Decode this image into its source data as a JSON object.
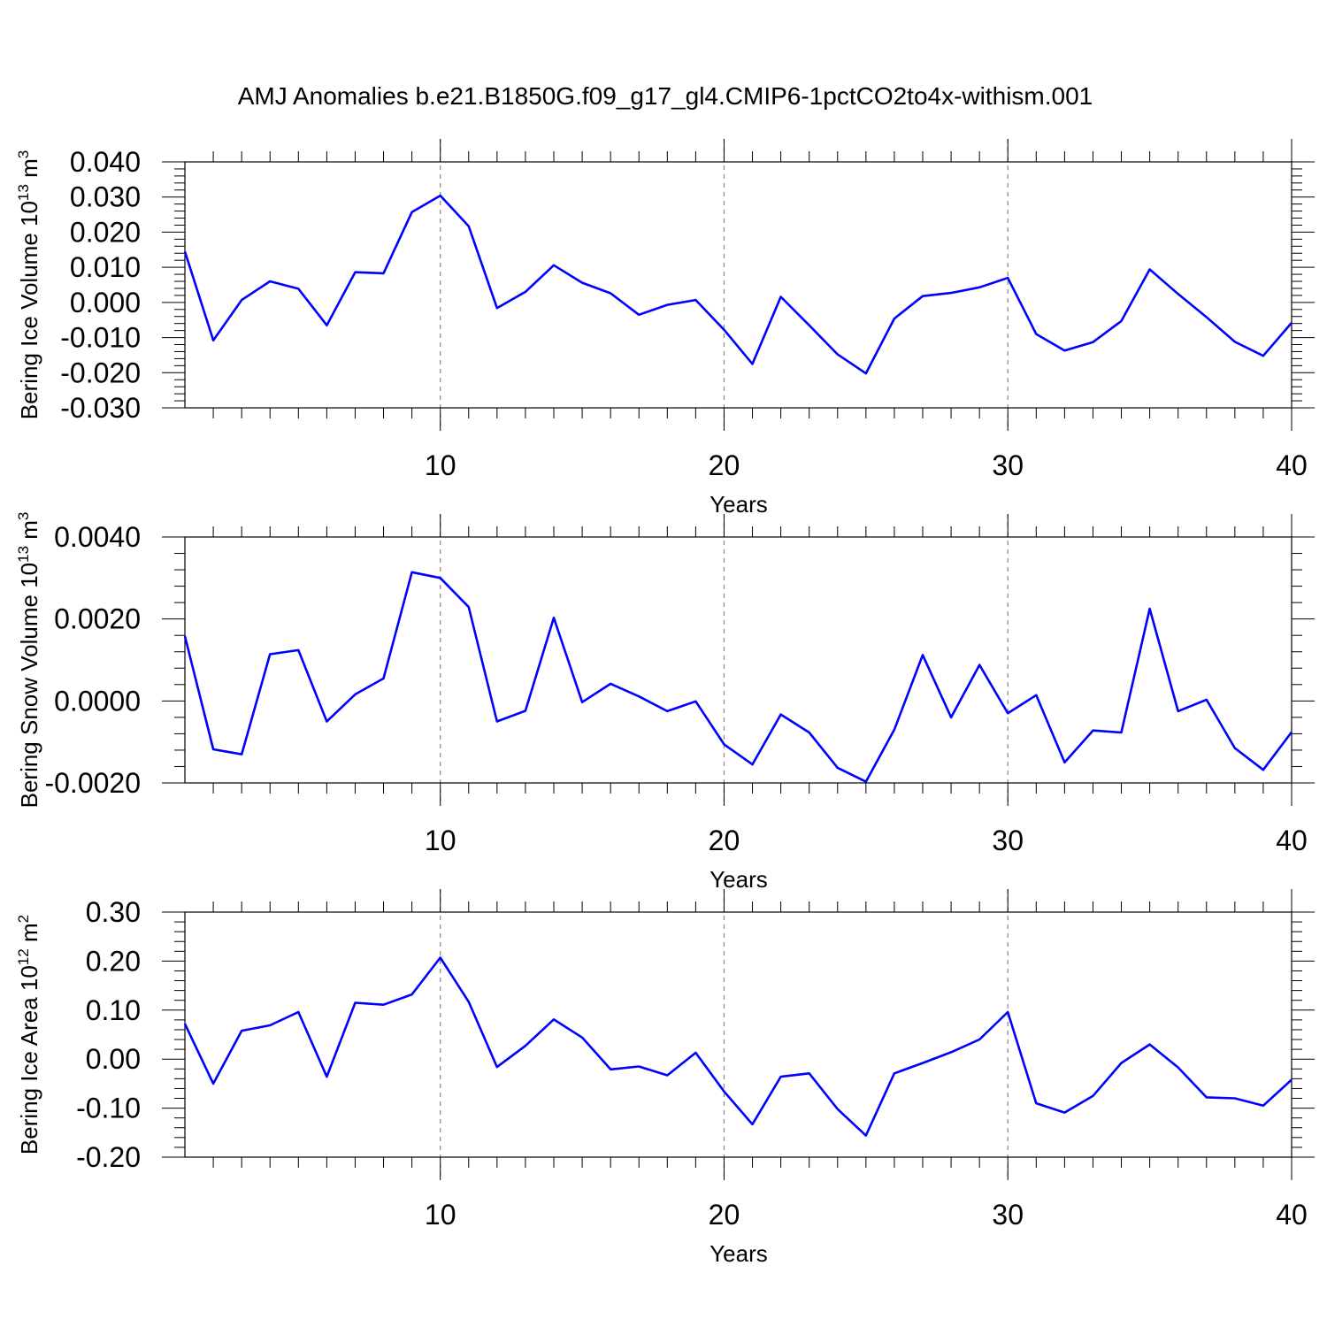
{
  "title": "AMJ Anomalies b.e21.B1850G.f09_g17_gl4.CMIP6-1pctCO2to4x-withism.001",
  "chart_data": [
    {
      "type": "line",
      "title": "",
      "xlabel": "Years",
      "ylabel": {
        "text": "Bering Ice Volume 10",
        "sup": "13",
        "unit": " m",
        "unit_sup": "3"
      },
      "xlim": [
        1,
        40
      ],
      "ylim": [
        -0.03,
        0.04
      ],
      "xticks": [
        "10",
        "20",
        "30",
        "40"
      ],
      "yticks": [
        "-0.030",
        "-0.020",
        "-0.010",
        "0.000",
        "0.010",
        "0.020",
        "0.030",
        "0.040"
      ],
      "grid_x": [
        10,
        20,
        30
      ],
      "color": "#0000ff",
      "x": [
        1,
        2,
        3,
        4,
        5,
        6,
        7,
        8,
        9,
        10,
        11,
        12,
        13,
        14,
        15,
        16,
        17,
        18,
        19,
        20,
        21,
        22,
        23,
        24,
        25,
        26,
        27,
        28,
        29,
        30,
        31,
        32,
        33,
        34,
        35,
        36,
        37,
        38,
        39,
        40
      ],
      "y": [
        0.0145,
        -0.0108,
        0.0007,
        0.006,
        0.0039,
        -0.0065,
        0.0086,
        0.0083,
        0.0257,
        0.0304,
        0.0217,
        -0.0016,
        0.003,
        0.0106,
        0.0056,
        0.0026,
        -0.0035,
        -0.0007,
        0.0007,
        -0.0078,
        -0.0175,
        0.0016,
        -0.0065,
        -0.0148,
        -0.0202,
        -0.0046,
        0.0018,
        0.0027,
        0.0043,
        0.007,
        -0.009,
        -0.0137,
        -0.0113,
        -0.0053,
        0.0094,
        0.0024,
        -0.0042,
        -0.0112,
        -0.0152,
        -0.0058
      ]
    },
    {
      "type": "line",
      "title": "",
      "xlabel": "Years",
      "ylabel": {
        "text": "Bering Snow Volume 10",
        "sup": "13",
        "unit": " m",
        "unit_sup": "3"
      },
      "xlim": [
        1,
        40
      ],
      "ylim": [
        -0.002,
        0.004
      ],
      "xticks": [
        "10",
        "20",
        "30",
        "40"
      ],
      "yticks": [
        "-0.0020",
        "0.0000",
        "0.0020",
        "0.0040"
      ],
      "grid_x": [
        10,
        20,
        30
      ],
      "color": "#0000ff",
      "x": [
        1,
        2,
        3,
        4,
        5,
        6,
        7,
        8,
        9,
        10,
        11,
        12,
        13,
        14,
        15,
        16,
        17,
        18,
        19,
        20,
        21,
        22,
        23,
        24,
        25,
        26,
        27,
        28,
        29,
        30,
        31,
        32,
        33,
        34,
        35,
        36,
        37,
        38,
        39,
        40
      ],
      "y": [
        0.00158,
        -0.00118,
        -0.0013,
        0.00114,
        0.00124,
        -0.0005,
        0.00016,
        0.00055,
        0.00314,
        0.003,
        0.00229,
        -0.0005,
        -0.00024,
        0.00203,
        -3e-05,
        0.00042,
        0.00011,
        -0.00025,
        -1e-05,
        -0.00106,
        -0.00155,
        -0.00033,
        -0.00077,
        -0.00163,
        -0.00197,
        -0.0007,
        0.00112,
        -0.0004,
        0.00088,
        -0.0003,
        0.00014,
        -0.0015,
        -0.00072,
        -0.00077,
        0.00225,
        -0.00025,
        3e-05,
        -0.00115,
        -0.00168,
        -0.00076
      ]
    },
    {
      "type": "line",
      "title": "",
      "xlabel": "Years",
      "ylabel": {
        "text": "Bering Ice Area 10",
        "sup": "12",
        "unit": " m",
        "unit_sup": "2"
      },
      "xlim": [
        1,
        40
      ],
      "ylim": [
        -0.2,
        0.3
      ],
      "xticks": [
        "10",
        "20",
        "30",
        "40"
      ],
      "yticks": [
        "-0.20",
        "-0.10",
        "0.00",
        "0.10",
        "0.20",
        "0.30"
      ],
      "grid_x": [
        10,
        20,
        30
      ],
      "color": "#0000ff",
      "x": [
        1,
        2,
        3,
        4,
        5,
        6,
        7,
        8,
        9,
        10,
        11,
        12,
        13,
        14,
        15,
        16,
        17,
        18,
        19,
        20,
        21,
        22,
        23,
        24,
        25,
        26,
        27,
        28,
        29,
        30,
        31,
        32,
        33,
        34,
        35,
        36,
        37,
        38,
        39,
        40
      ],
      "y": [
        0.072,
        -0.05,
        0.058,
        0.069,
        0.096,
        -0.036,
        0.115,
        0.111,
        0.132,
        0.207,
        0.117,
        -0.016,
        0.027,
        0.081,
        0.044,
        -0.021,
        -0.015,
        -0.033,
        0.013,
        -0.066,
        -0.133,
        -0.036,
        -0.029,
        -0.102,
        -0.156,
        -0.029,
        -0.008,
        0.014,
        0.04,
        0.096,
        -0.09,
        -0.109,
        -0.075,
        -0.008,
        0.03,
        -0.017,
        -0.078,
        -0.08,
        -0.095,
        -0.042
      ]
    }
  ]
}
